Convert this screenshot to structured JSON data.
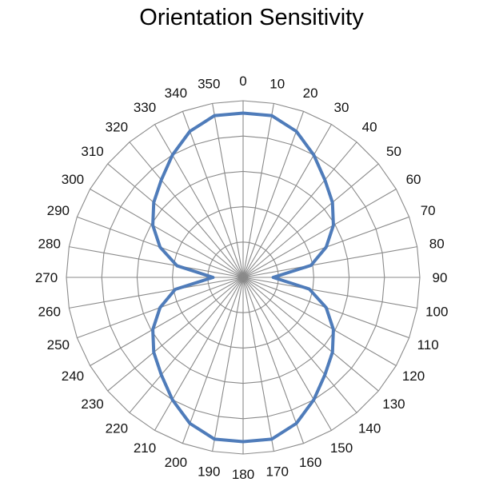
{
  "chart_data": {
    "type": "radar",
    "title": "Orientation Sensitivity",
    "angular_axis": {
      "direction": "clockwise",
      "zero_at": "top",
      "tick_labels": [
        "0",
        "10",
        "20",
        "30",
        "40",
        "50",
        "60",
        "70",
        "80",
        "90",
        "100",
        "110",
        "120",
        "130",
        "140",
        "150",
        "160",
        "170",
        "180",
        "190",
        "200",
        "210",
        "220",
        "230",
        "240",
        "250",
        "260",
        "270",
        "280",
        "290",
        "300",
        "310",
        "320",
        "330",
        "340",
        "350"
      ]
    },
    "radial_axis": {
      "range": [
        0,
        1
      ],
      "rings": 5,
      "tick_labels_visible": false
    },
    "grid": true,
    "legend": "none",
    "series": [
      {
        "color": "#4f7cba",
        "theta": [
          0,
          10,
          20,
          30,
          40,
          50,
          60,
          70,
          80,
          90,
          100,
          110,
          120,
          130,
          140,
          150,
          160,
          170,
          180,
          190,
          200,
          210,
          220,
          230,
          240,
          250,
          260,
          270,
          280,
          290,
          300,
          310,
          320,
          330,
          340,
          350
        ],
        "r": [
          0.93,
          0.93,
          0.88,
          0.8,
          0.72,
          0.66,
          0.59,
          0.5,
          0.39,
          0.17,
          0.38,
          0.5,
          0.59,
          0.66,
          0.72,
          0.8,
          0.88,
          0.93,
          0.93,
          0.93,
          0.88,
          0.8,
          0.72,
          0.66,
          0.59,
          0.5,
          0.39,
          0.17,
          0.38,
          0.5,
          0.59,
          0.66,
          0.72,
          0.8,
          0.88,
          0.93
        ]
      }
    ]
  }
}
